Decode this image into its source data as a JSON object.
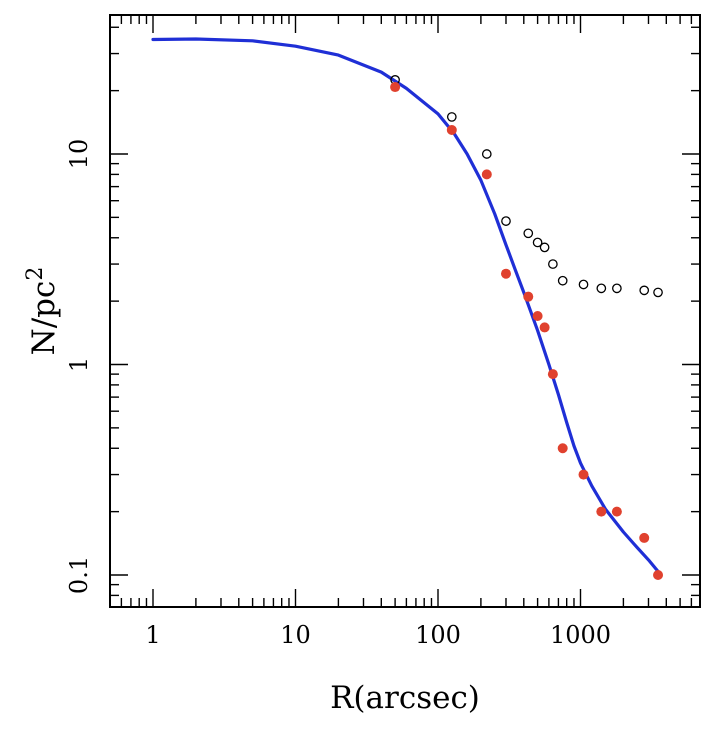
{
  "chart_data": {
    "type": "scatter",
    "xlabel": "R(arcsec)",
    "ylabel": "N/pc",
    "ylabel_superscript": "2",
    "x_scale": "log",
    "y_scale": "log",
    "xlim": [
      0.55,
      7000
    ],
    "ylim": [
      0.07,
      55
    ],
    "x_tick_labels": [
      {
        "value": 1,
        "label": "1"
      },
      {
        "value": 10,
        "label": "10"
      },
      {
        "value": 100,
        "label": "100"
      },
      {
        "value": 1000,
        "label": "1000"
      }
    ],
    "y_tick_labels": [
      {
        "value": 0.1,
        "label": "0.1"
      },
      {
        "value": 1,
        "label": "1"
      },
      {
        "value": 10,
        "label": "10"
      }
    ],
    "grid": false,
    "series": [
      {
        "style": "open-circles",
        "color": "#000000",
        "points": [
          {
            "x": 50,
            "y": 22.5
          },
          {
            "x": 125,
            "y": 15
          },
          {
            "x": 220,
            "y": 10
          },
          {
            "x": 300,
            "y": 4.8
          },
          {
            "x": 430,
            "y": 4.2
          },
          {
            "x": 500,
            "y": 3.8
          },
          {
            "x": 560,
            "y": 3.6
          },
          {
            "x": 640,
            "y": 3.0
          },
          {
            "x": 750,
            "y": 2.5
          },
          {
            "x": 1050,
            "y": 2.4
          },
          {
            "x": 1400,
            "y": 2.3
          },
          {
            "x": 1800,
            "y": 2.3
          },
          {
            "x": 2800,
            "y": 2.25
          },
          {
            "x": 3500,
            "y": 2.2
          }
        ]
      },
      {
        "style": "filled-circles",
        "color": "#e0412e",
        "points": [
          {
            "x": 50,
            "y": 20.8
          },
          {
            "x": 125,
            "y": 13
          },
          {
            "x": 220,
            "y": 8
          },
          {
            "x": 300,
            "y": 2.7
          },
          {
            "x": 430,
            "y": 2.1
          },
          {
            "x": 500,
            "y": 1.7
          },
          {
            "x": 560,
            "y": 1.5
          },
          {
            "x": 640,
            "y": 0.9
          },
          {
            "x": 750,
            "y": 0.4
          },
          {
            "x": 1050,
            "y": 0.3
          },
          {
            "x": 1400,
            "y": 0.2
          },
          {
            "x": 1800,
            "y": 0.2
          },
          {
            "x": 2800,
            "y": 0.15
          },
          {
            "x": 3500,
            "y": 0.1
          }
        ]
      },
      {
        "style": "line",
        "color": "#1f2fd6",
        "points": [
          {
            "x": 1,
            "y": 35
          },
          {
            "x": 2,
            "y": 35.2
          },
          {
            "x": 5,
            "y": 34.5
          },
          {
            "x": 10,
            "y": 32.5
          },
          {
            "x": 20,
            "y": 29.5
          },
          {
            "x": 40,
            "y": 24.5
          },
          {
            "x": 60,
            "y": 20.5
          },
          {
            "x": 80,
            "y": 17.5
          },
          {
            "x": 100,
            "y": 15.5
          },
          {
            "x": 130,
            "y": 12.5
          },
          {
            "x": 160,
            "y": 10
          },
          {
            "x": 200,
            "y": 7.5
          },
          {
            "x": 250,
            "y": 5.2
          },
          {
            "x": 300,
            "y": 3.7
          },
          {
            "x": 350,
            "y": 2.8
          },
          {
            "x": 400,
            "y": 2.2
          },
          {
            "x": 500,
            "y": 1.45
          },
          {
            "x": 600,
            "y": 1.0
          },
          {
            "x": 700,
            "y": 0.72
          },
          {
            "x": 800,
            "y": 0.53
          },
          {
            "x": 900,
            "y": 0.41
          },
          {
            "x": 1000,
            "y": 0.34
          },
          {
            "x": 1200,
            "y": 0.265
          },
          {
            "x": 1500,
            "y": 0.205
          },
          {
            "x": 2000,
            "y": 0.16
          },
          {
            "x": 2500,
            "y": 0.135
          },
          {
            "x": 3000,
            "y": 0.118
          },
          {
            "x": 3500,
            "y": 0.104
          }
        ]
      }
    ]
  }
}
